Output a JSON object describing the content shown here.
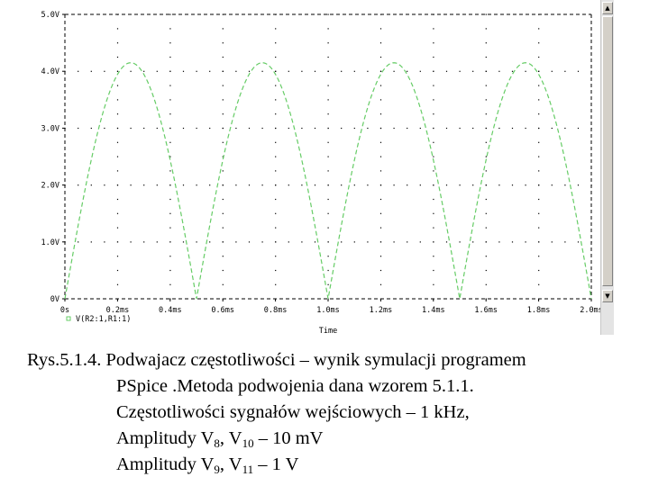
{
  "chart_data": {
    "type": "line",
    "title": "",
    "xlabel": "Time",
    "ylabel": "",
    "xlim": [
      0,
      2.0
    ],
    "ylim": [
      0,
      5.0
    ],
    "x_unit": "ms",
    "x_ticks": [
      0,
      0.2,
      0.4,
      0.6,
      0.8,
      1.0,
      1.2,
      1.4,
      1.6,
      1.8,
      2.0
    ],
    "x_tick_labels": [
      "0s",
      "0.2ms",
      "0.4ms",
      "0.6ms",
      "0.8ms",
      "1.0ms",
      "1.2ms",
      "1.4ms",
      "1.6ms",
      "1.8ms",
      "2.0ms"
    ],
    "y_ticks": [
      0,
      1,
      2,
      3,
      4,
      5
    ],
    "y_tick_labels": [
      "0V",
      "1.0V",
      "2.0V",
      "3.0V",
      "4.0V",
      "5.0V"
    ],
    "grid": true,
    "legend_position": "bottom-left",
    "series": [
      {
        "name": "V(R2:1,R1:1)",
        "color": "#66cc66",
        "line_style": "dashed",
        "function": "full-wave rectified sine",
        "amplitude": 4.15,
        "period_ms": 0.5,
        "peak_x": [
          0.25,
          0.75,
          1.25,
          1.75
        ],
        "zero_x": [
          0,
          0.5,
          1.0,
          1.5,
          2.0
        ],
        "x": [
          0,
          0.05,
          0.1,
          0.15,
          0.2,
          0.25,
          0.3,
          0.35,
          0.4,
          0.45,
          0.5,
          0.55,
          0.6,
          0.65,
          0.7,
          0.75,
          0.8,
          0.85,
          0.9,
          0.95,
          1.0,
          1.05,
          1.1,
          1.15,
          1.2,
          1.25,
          1.3,
          1.35,
          1.4,
          1.45,
          1.5,
          1.55,
          1.6,
          1.65,
          1.7,
          1.75,
          1.8,
          1.85,
          1.9,
          1.95,
          2.0
        ],
        "values": [
          0,
          1.28,
          2.44,
          3.36,
          3.95,
          4.15,
          3.95,
          3.36,
          2.44,
          1.28,
          0,
          1.28,
          2.44,
          3.36,
          3.95,
          4.15,
          3.95,
          3.36,
          2.44,
          1.28,
          0,
          1.28,
          2.44,
          3.36,
          3.95,
          4.15,
          3.95,
          3.36,
          2.44,
          1.28,
          0,
          1.28,
          2.44,
          3.36,
          3.95,
          4.15,
          3.95,
          3.36,
          2.44,
          1.28,
          0
        ]
      }
    ]
  },
  "scrollbar": {
    "up_glyph": "▲",
    "down_glyph": "▼"
  },
  "caption": {
    "line1": "Rys.5.1.4. Podwajacz częstotliwości – wynik symulacji programem",
    "line2": "PSpice .Metoda podwojenia dana wzorem 5.1.1.",
    "line3": "Częstotliwości sygnałów wejściowych – 1 kHz,",
    "line4_prefix": "Amplitudy V",
    "line4_sub1": "8",
    "line4_mid": ", V",
    "line4_sub2": "10",
    "line4_suffix": " – 10 mV",
    "line5_prefix": "Amplitudy V",
    "line5_sub1": "9",
    "line5_mid": ", V",
    "line5_sub2": "11",
    "line5_suffix": " – 1 V"
  }
}
